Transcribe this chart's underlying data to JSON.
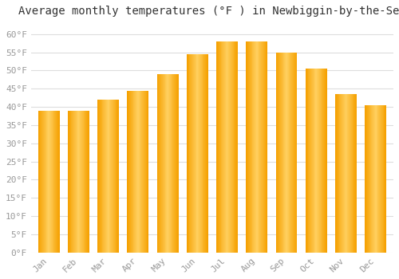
{
  "title": "Average monthly temperatures (°F ) in Newbiggin-by-the-Sea",
  "months": [
    "Jan",
    "Feb",
    "Mar",
    "Apr",
    "May",
    "Jun",
    "Jul",
    "Aug",
    "Sep",
    "Oct",
    "Nov",
    "Dec"
  ],
  "values": [
    39,
    39,
    42,
    44.5,
    49,
    54.5,
    58,
    58,
    55,
    50.5,
    43.5,
    40.5
  ],
  "bar_color_center": "#FFD060",
  "bar_color_edge": "#F5A000",
  "background_color": "#FFFFFF",
  "grid_color": "#DDDDDD",
  "title_fontsize": 10,
  "tick_fontsize": 8,
  "ytick_step": 5,
  "ylim": [
    0,
    63
  ],
  "title_color": "#333333",
  "tick_color": "#999999"
}
